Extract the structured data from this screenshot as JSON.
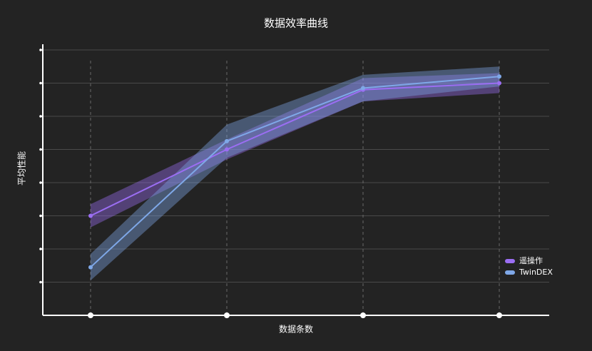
{
  "chart_data": {
    "type": "line",
    "title": "数据效率曲线",
    "x_label": "数据条数",
    "y_label": "平均性能",
    "categories": [
      null,
      null,
      null,
      null
    ],
    "series": [
      {
        "name": "遥操作",
        "color": "#9b6ef3",
        "values": [
          3.0,
          5.0,
          6.8,
          7.0
        ],
        "errors": [
          0.35,
          0.3,
          0.35,
          0.3
        ]
      },
      {
        "name": "TwinDEX",
        "color": "#7fa8e8",
        "values": [
          1.45,
          5.25,
          6.85,
          7.2
        ],
        "errors": [
          0.4,
          0.5,
          0.4,
          0.3
        ]
      }
    ],
    "ylim": [
      0,
      8
    ],
    "yticks": [
      1,
      2,
      3,
      4,
      5,
      6,
      7,
      8
    ],
    "grid": true,
    "legend": "lower right"
  }
}
